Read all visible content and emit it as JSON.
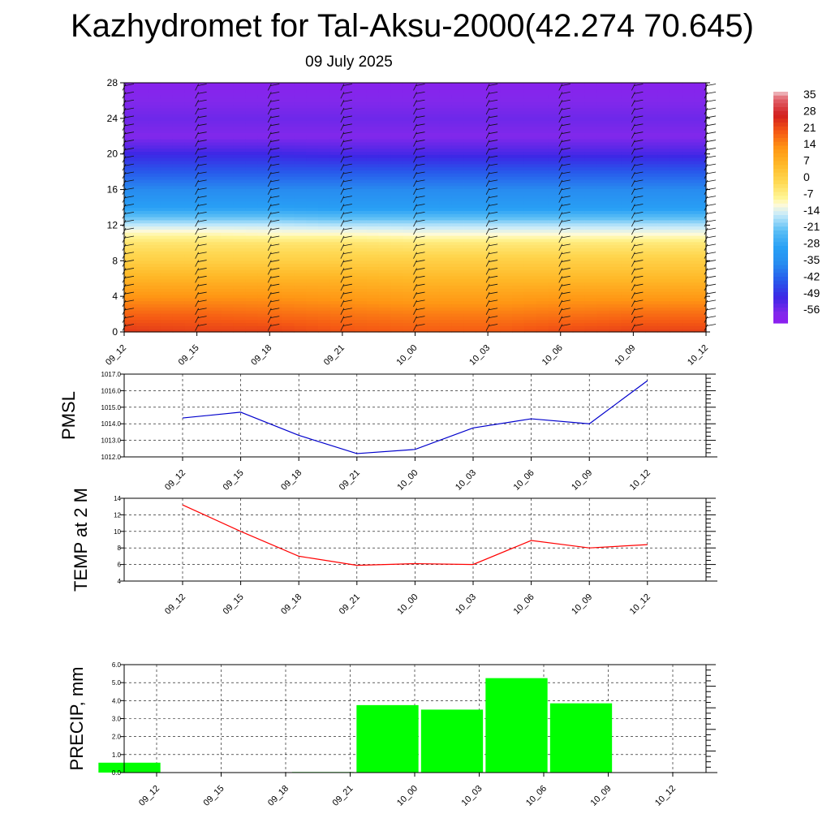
{
  "title": "Kazhydromet for Tal-Aksu-2000(42.274 70.645)",
  "subtitle": "09 July 2025",
  "chart_data": [
    {
      "type": "heatmap",
      "x_ticks": [
        "09_12",
        "09_15",
        "09_18",
        "09_21",
        "10_00",
        "10_03",
        "10_06",
        "10_09",
        "10_12"
      ],
      "y_ticks": [
        0,
        4,
        8,
        12,
        16,
        20,
        24,
        28
      ],
      "ylim": [
        0,
        28
      ],
      "colorbar": {
        "ticks": [
          "35",
          "28",
          "21",
          "14",
          "7",
          "0",
          "-7",
          "-14",
          "-21",
          "-28",
          "-35",
          "-42",
          "-49",
          "-56"
        ],
        "range": [
          -60,
          38
        ]
      },
      "levels": [
        0,
        2,
        4,
        6,
        8,
        10,
        11,
        12,
        14,
        16,
        18,
        20,
        22,
        24,
        26,
        28
      ],
      "values": [
        [
          25,
          20,
          14,
          8,
          2,
          -3,
          -8,
          -14,
          -28,
          -35,
          -42,
          -49,
          -56,
          -54,
          -56,
          -58
        ],
        [
          24,
          20,
          14,
          8,
          2,
          -3,
          -8,
          -14,
          -28,
          -35,
          -42,
          -49,
          -56,
          -54,
          -56,
          -58
        ],
        [
          24,
          19,
          14,
          8,
          2,
          -3,
          -9,
          -14,
          -28,
          -35,
          -42,
          -49,
          -56,
          -54,
          -56,
          -58
        ],
        [
          22,
          18,
          13,
          8,
          2,
          -3,
          -9,
          -15,
          -29,
          -35,
          -42,
          -50,
          -56,
          -54,
          -56,
          -58
        ],
        [
          21,
          17,
          12,
          7,
          2,
          -4,
          -10,
          -15,
          -29,
          -35,
          -42,
          -50,
          -56,
          -54,
          -56,
          -58
        ],
        [
          21,
          17,
          12,
          7,
          2,
          -4,
          -10,
          -15,
          -29,
          -35,
          -42,
          -50,
          -56,
          -54,
          -56,
          -58
        ],
        [
          23,
          18,
          13,
          7,
          2,
          -4,
          -10,
          -15,
          -29,
          -35,
          -42,
          -50,
          -56,
          -54,
          -56,
          -58
        ],
        [
          24,
          19,
          13,
          7,
          2,
          -4,
          -10,
          -15,
          -29,
          -35,
          -42,
          -50,
          -56,
          -54,
          -56,
          -58
        ],
        [
          24,
          19,
          13,
          7,
          2,
          -4,
          -10,
          -15,
          -29,
          -35,
          -42,
          -50,
          -56,
          -54,
          -56,
          -58
        ]
      ],
      "wind_barbs": "present at every time step and level"
    },
    {
      "type": "line",
      "ylabel": "PMSL",
      "categories": [
        "09_12",
        "09_15",
        "09_18",
        "09_21",
        "10_00",
        "10_03",
        "10_06",
        "10_09",
        "10_12"
      ],
      "values": [
        1014.35,
        1014.7,
        1013.3,
        1012.2,
        1012.45,
        1013.75,
        1014.3,
        1014.0,
        1016.6
      ],
      "ylim": [
        1012.0,
        1017.0
      ],
      "y_ticks": [
        "1012.0",
        "1013.0",
        "1014.0",
        "1015.0",
        "1016.0",
        "1017.0"
      ],
      "color": "#0000cc",
      "grid": true
    },
    {
      "type": "line",
      "ylabel": "TEMP at 2 M",
      "categories": [
        "09_12",
        "09_15",
        "09_18",
        "09_21",
        "10_00",
        "10_03",
        "10_06",
        "10_09",
        "10_12"
      ],
      "values": [
        13.2,
        10.0,
        7.0,
        5.9,
        6.1,
        6.0,
        8.9,
        8.0,
        8.4
      ],
      "ylim": [
        4,
        14
      ],
      "y_ticks": [
        "4",
        "6",
        "8",
        "10",
        "12",
        "14"
      ],
      "color": "#ff0000",
      "grid": true
    },
    {
      "type": "bar",
      "ylabel": "PRECIP, mm",
      "categories": [
        "09_12",
        "09_15",
        "09_18",
        "09_21",
        "10_00",
        "10_03",
        "10_06",
        "10_09",
        "10_12"
      ],
      "values": [
        0.0,
        0.55,
        0.0,
        0.0,
        0.03,
        3.75,
        3.5,
        5.25,
        3.85
      ],
      "ylim": [
        0.0,
        6.0
      ],
      "y_ticks": [
        "0.0",
        "1.0",
        "2.0",
        "3.0",
        "4.0",
        "5.0",
        "6.0"
      ],
      "color": "#00ff00",
      "grid": true
    }
  ]
}
